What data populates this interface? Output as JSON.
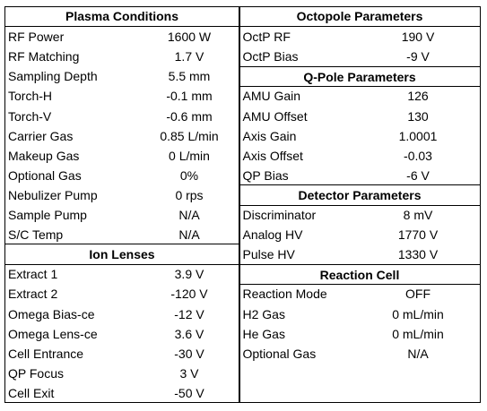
{
  "left": [
    {
      "title": "Plasma Conditions",
      "rows": [
        [
          "RF Power",
          "1600 W"
        ],
        [
          "RF Matching",
          "1.7 V"
        ],
        [
          "Sampling Depth",
          "5.5 mm"
        ],
        [
          "Torch-H",
          "-0.1 mm"
        ],
        [
          "Torch-V",
          "-0.6 mm"
        ],
        [
          "Carrier Gas",
          "0.85 L/min"
        ],
        [
          "Makeup Gas",
          "0 L/min"
        ],
        [
          "Optional Gas",
          "0%"
        ],
        [
          "Nebulizer Pump",
          "0 rps"
        ],
        [
          "Sample Pump",
          "N/A"
        ],
        [
          "S/C Temp",
          "N/A"
        ]
      ]
    },
    {
      "title": "Ion Lenses",
      "rows": [
        [
          "Extract 1",
          "3.9 V"
        ],
        [
          "Extract 2",
          "-120 V"
        ],
        [
          "Omega Bias-ce",
          "-12 V"
        ],
        [
          "Omega Lens-ce",
          "3.6 V"
        ],
        [
          "Cell Entrance",
          "-30 V"
        ],
        [
          "QP Focus",
          "3 V"
        ],
        [
          "Cell Exit",
          "-50 V"
        ]
      ]
    }
  ],
  "right": [
    {
      "title": "Octopole Parameters",
      "rows": [
        [
          "OctP RF",
          "190 V"
        ],
        [
          "OctP Bias",
          "-9 V"
        ]
      ]
    },
    {
      "title": "Q-Pole Parameters",
      "rows": [
        [
          "AMU Gain",
          "126"
        ],
        [
          "AMU Offset",
          "130"
        ],
        [
          "Axis Gain",
          "1.0001"
        ],
        [
          "Axis Offset",
          "-0.03"
        ],
        [
          "QP Bias",
          "-6 V"
        ]
      ]
    },
    {
      "title": "Detector Parameters",
      "rows": [
        [
          "Discriminator",
          "8 mV"
        ],
        [
          "Analog HV",
          "1770 V"
        ],
        [
          "Pulse HV",
          "1330 V"
        ]
      ]
    },
    {
      "title": "Reaction Cell",
      "rows": [
        [
          "Reaction Mode",
          "OFF"
        ],
        [
          "H2 Gas",
          "0 mL/min"
        ],
        [
          "He Gas",
          "0 mL/min"
        ],
        [
          "Optional Gas",
          "N/A"
        ]
      ]
    }
  ]
}
